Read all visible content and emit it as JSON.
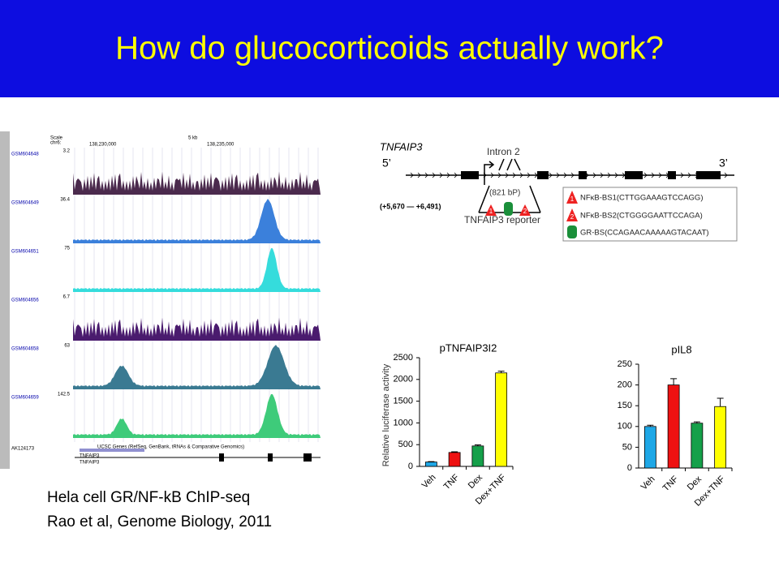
{
  "title": "How do glucocorticoids actually work?",
  "caption": [
    "Hela cell GR/NF-kB ChIP-seq",
    "Rao et al, Genome Biology, 2011"
  ],
  "browser": {
    "scale": "Scale",
    "chrom": "chr6:",
    "span": "5 kb",
    "positions": [
      "138,230,000",
      "138,235,000"
    ],
    "tracks": [
      {
        "label": "GSM604648",
        "max": "3.2"
      },
      {
        "label": "GSM604649",
        "max": "36.4"
      },
      {
        "label": "GSM604651",
        "max": "75"
      },
      {
        "label": "GSM604656",
        "max": "6.7"
      },
      {
        "label": "GSM604658",
        "max": "63"
      },
      {
        "label": "GSM604659",
        "max": "142.5"
      }
    ],
    "genes": "UCSC Genes (RefSeq, GenBank, tRNAs & Comparative Genomics)",
    "gene_labels": [
      "AK124173",
      "TNFAIP3",
      "TNFAIP3"
    ]
  },
  "diagram": {
    "gene": "TNFAIP3",
    "intron": "Intron 2",
    "five": "5’",
    "three": "3’",
    "length": "(821 bP)",
    "range": "(+5,670 — +6,491)",
    "reporter": "TNFAIP3 reporter",
    "site_numbers": [
      "1",
      "2"
    ],
    "legend": [
      "NFκB-BS1(CTTGGAAAGTCCAGG)",
      "NFκB-BS2(CTGGGGAATTCCAGA)",
      "GR-BS(CCAGAACAAAAAGTACAAT)"
    ]
  },
  "chart_data": [
    {
      "type": "bar",
      "title": "pTNFAIP3I2",
      "y_label": "Relative luciferase activity",
      "categories": [
        "Veh",
        "TNF",
        "Dex",
        "Dex+TNF"
      ],
      "values": [
        100,
        320,
        470,
        2150
      ],
      "errors": [
        10,
        15,
        25,
        40
      ],
      "colors": [
        "#1ea7e6",
        "#ee1111",
        "#15a04a",
        "#ffff00"
      ],
      "ylim": [
        0,
        2500
      ],
      "yticks": [
        0,
        500,
        1000,
        1500,
        2000,
        2500
      ]
    },
    {
      "type": "bar",
      "title": "pIL8",
      "categories": [
        "Veh",
        "TNF",
        "Dex",
        "Dex+TNF"
      ],
      "values": [
        100,
        200,
        108,
        148
      ],
      "errors": [
        3,
        15,
        3,
        20
      ],
      "colors": [
        "#1ea7e6",
        "#ee1111",
        "#15a04a",
        "#ffff00"
      ],
      "ylim": [
        0,
        250
      ],
      "yticks": [
        0,
        50,
        100,
        150,
        200,
        250
      ]
    }
  ]
}
